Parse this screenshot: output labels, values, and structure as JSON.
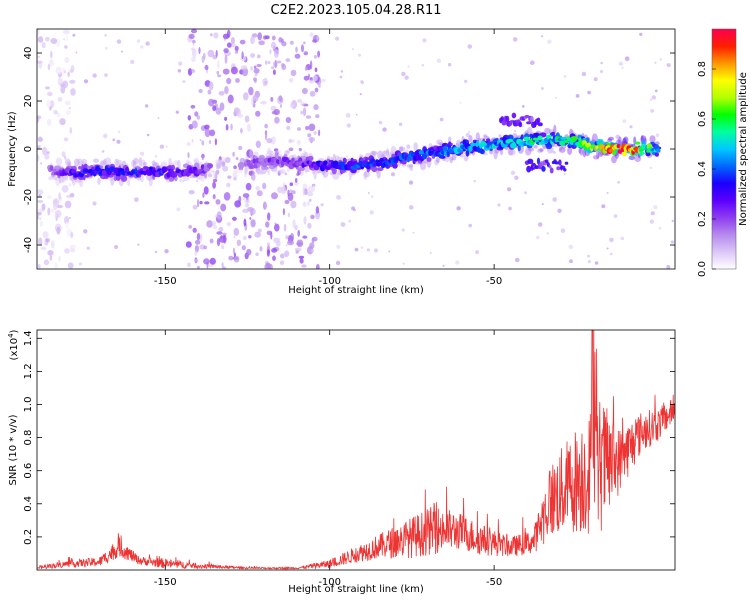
{
  "figure_title": "C2E2.2023.105.04.28.R11",
  "chart_data": [
    {
      "type": "heatmap",
      "title": "",
      "xlabel": "Height of straight line (km)",
      "ylabel": "Frequency (Hz)",
      "xlim": [
        -189,
        5
      ],
      "ylim": [
        -50,
        50
      ],
      "x_ticks": [
        -150,
        -100,
        -50
      ],
      "y_ticks": [
        -40,
        -20,
        0,
        20,
        40
      ],
      "grid": false,
      "colorbar": {
        "label": "Normalized spectral amplitude",
        "range": [
          0.0,
          0.96
        ],
        "ticks": [
          0.0,
          0.2,
          0.4,
          0.6,
          0.8
        ],
        "colormap": [
          "#ffffff",
          "#dcc6f6",
          "#b68aee",
          "#8e3cf0",
          "#5b00ff",
          "#1a00ff",
          "#0068ff",
          "#00c8ff",
          "#00ffa0",
          "#00ff00",
          "#b4ff00",
          "#ffff00",
          "#ff9600",
          "#ff1e00",
          "#ff0050"
        ]
      },
      "ridge": [
        {
          "x": -185,
          "y": -9,
          "amp": 0.2
        },
        {
          "x": -178,
          "y": -10,
          "amp": 0.3
        },
        {
          "x": -170,
          "y": -9,
          "amp": 0.32
        },
        {
          "x": -162,
          "y": -10,
          "amp": 0.33
        },
        {
          "x": -155,
          "y": -9,
          "amp": 0.32
        },
        {
          "x": -148,
          "y": -10,
          "amp": 0.3
        },
        {
          "x": -141,
          "y": -9,
          "amp": 0.24
        },
        {
          "x": -132,
          "y": -7,
          "amp": 0.12
        },
        {
          "x": -123,
          "y": -6,
          "amp": 0.2
        },
        {
          "x": -115,
          "y": -5,
          "amp": 0.22
        },
        {
          "x": -108,
          "y": -6,
          "amp": 0.25
        },
        {
          "x": -100,
          "y": -7,
          "amp": 0.32
        },
        {
          "x": -92,
          "y": -7,
          "amp": 0.36
        },
        {
          "x": -85,
          "y": -6,
          "amp": 0.35
        },
        {
          "x": -78,
          "y": -4,
          "amp": 0.38
        },
        {
          "x": -70,
          "y": -2,
          "amp": 0.4
        },
        {
          "x": -62,
          "y": 0,
          "amp": 0.42
        },
        {
          "x": -55,
          "y": 1,
          "amp": 0.44
        },
        {
          "x": -48,
          "y": 2,
          "amp": 0.48
        },
        {
          "x": -40,
          "y": 3,
          "amp": 0.5
        },
        {
          "x": -32,
          "y": 4,
          "amp": 0.52
        },
        {
          "x": -25,
          "y": 3,
          "amp": 0.55
        },
        {
          "x": -20,
          "y": 1,
          "amp": 0.65
        },
        {
          "x": -15,
          "y": 0,
          "amp": 0.8
        },
        {
          "x": -10,
          "y": 0,
          "amp": 0.9
        },
        {
          "x": -5,
          "y": 0,
          "amp": 0.7
        },
        {
          "x": 0,
          "y": 0,
          "amp": 0.45
        }
      ],
      "noise_bands": [
        {
          "x_start": -143,
          "x_end": -103,
          "y_start": -50,
          "y_end": 50,
          "amp": 0.18
        },
        {
          "x_start": -189,
          "x_end": -178,
          "y_start": -50,
          "y_end": 50,
          "amp": 0.08
        }
      ],
      "features": [
        {
          "x_start": -48,
          "x_end": -36,
          "y": 12,
          "amp": 0.25
        },
        {
          "x_start": -40,
          "x_end": -28,
          "y": -7,
          "amp": 0.3
        }
      ]
    },
    {
      "type": "line",
      "title": "",
      "xlabel": "Height of straight line (km)",
      "ylabel": "SNR (10 * v/v)",
      "y_multiplier_label": "(x10",
      "y_multiplier_exp": "4",
      "y_multiplier_close": ")",
      "xlim": [
        -189,
        5
      ],
      "ylim": [
        0,
        1.45
      ],
      "x_ticks": [
        -150,
        -100,
        -50
      ],
      "y_ticks": [
        0.2,
        0.4,
        0.6,
        0.8,
        1.0,
        1.2,
        1.4
      ],
      "grid": false,
      "series": [
        {
          "color": "#ee3333",
          "envelope": [
            {
              "x": -189,
              "base": 0.01,
              "spread": 0.02
            },
            {
              "x": -180,
              "base": 0.03,
              "spread": 0.04
            },
            {
              "x": -170,
              "base": 0.04,
              "spread": 0.06
            },
            {
              "x": -164,
              "base": 0.12,
              "spread": 0.12
            },
            {
              "x": -158,
              "base": 0.05,
              "spread": 0.05
            },
            {
              "x": -150,
              "base": 0.03,
              "spread": 0.06
            },
            {
              "x": -140,
              "base": 0.02,
              "spread": 0.03
            },
            {
              "x": -125,
              "base": 0.01,
              "spread": 0.01
            },
            {
              "x": -110,
              "base": 0.01,
              "spread": 0.01
            },
            {
              "x": -100,
              "base": 0.03,
              "spread": 0.05
            },
            {
              "x": -92,
              "base": 0.08,
              "spread": 0.1
            },
            {
              "x": -85,
              "base": 0.12,
              "spread": 0.15
            },
            {
              "x": -75,
              "base": 0.16,
              "spread": 0.25
            },
            {
              "x": -68,
              "base": 0.2,
              "spread": 0.3
            },
            {
              "x": -60,
              "base": 0.2,
              "spread": 0.22
            },
            {
              "x": -55,
              "base": 0.16,
              "spread": 0.2
            },
            {
              "x": -45,
              "base": 0.12,
              "spread": 0.12
            },
            {
              "x": -38,
              "base": 0.15,
              "spread": 0.15
            },
            {
              "x": -33,
              "base": 0.35,
              "spread": 0.45
            },
            {
              "x": -25,
              "base": 0.45,
              "spread": 0.65
            },
            {
              "x": -18,
              "base": 0.5,
              "spread": 0.85
            },
            {
              "x": -12,
              "base": 0.6,
              "spread": 0.4
            },
            {
              "x": -5,
              "base": 0.8,
              "spread": 0.25
            },
            {
              "x": 0,
              "base": 0.85,
              "spread": 0.2
            },
            {
              "x": 5,
              "base": 0.95,
              "spread": 0.15
            }
          ]
        }
      ]
    }
  ]
}
